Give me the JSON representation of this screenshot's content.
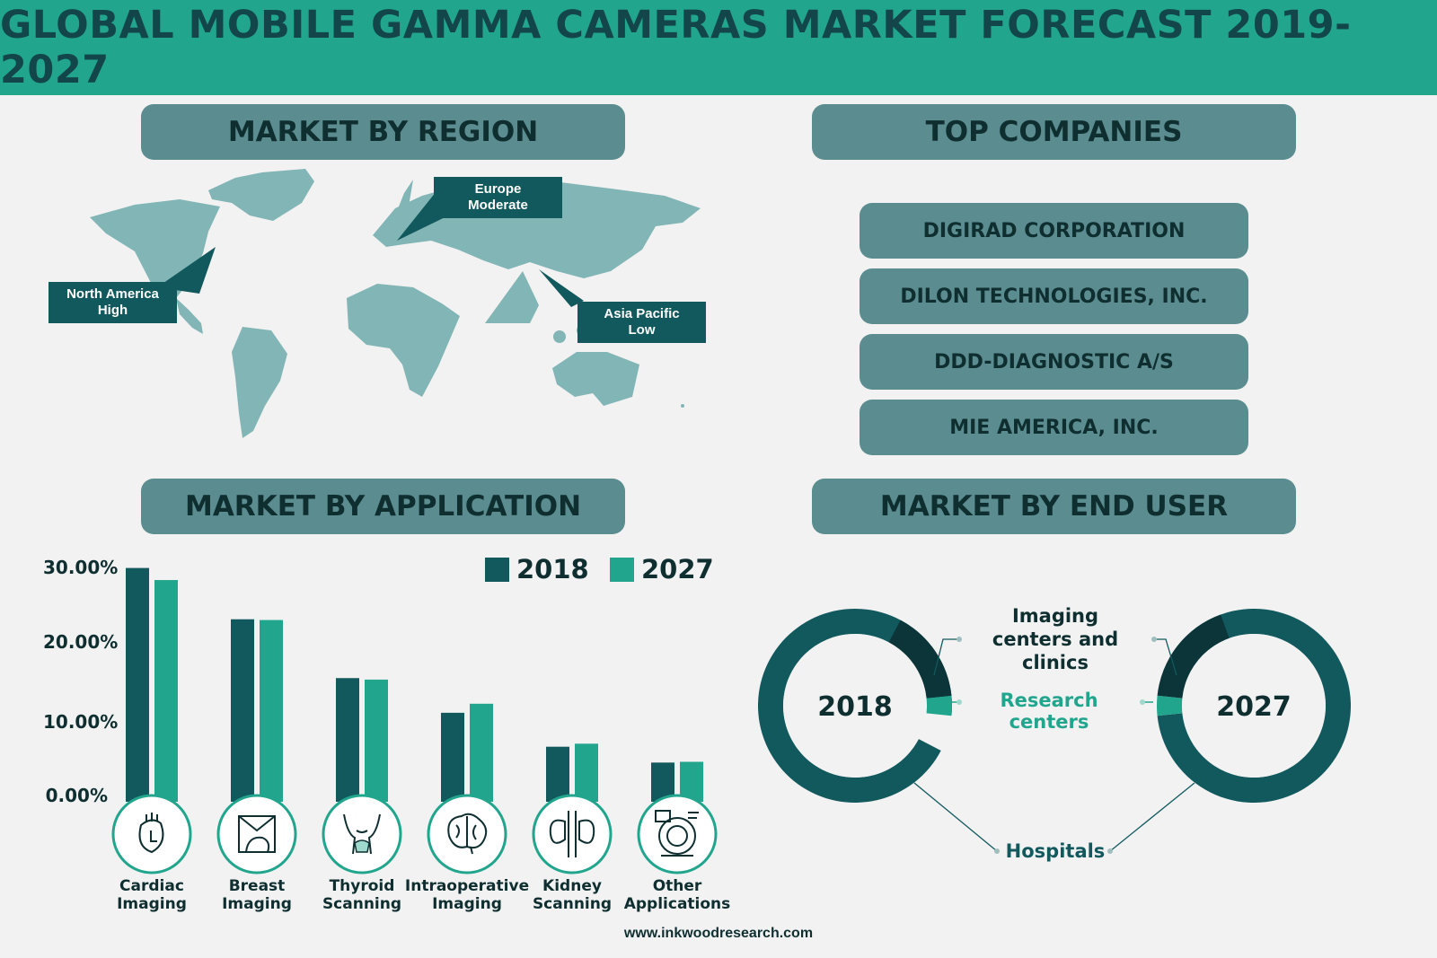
{
  "title": "GLOBAL MOBILE GAMMA CAMERAS MARKET FORECAST 2019-2027",
  "sections": {
    "region": "MARKET BY REGION",
    "companies": "TOP COMPANIES",
    "application": "MARKET BY APPLICATION",
    "end_user": "MARKET BY END USER"
  },
  "regions": [
    {
      "name": "North America",
      "level": "High"
    },
    {
      "name": "Europe",
      "level": "Moderate"
    },
    {
      "name": "Asia Pacific",
      "level": "Low"
    }
  ],
  "companies": [
    "DIGIRAD CORPORATION",
    "DILON TECHNOLOGIES, INC.",
    "DDD-DIAGNOSTIC A/S",
    "MIE AMERICA, INC."
  ],
  "colors": {
    "banner": "#21a68d",
    "pill": "#5b8c8f",
    "dark": "#12595e",
    "teal": "#21a68d",
    "darkest": "#0b3538"
  },
  "icons": [
    "heart-icon",
    "breast-icon",
    "thyroid-icon",
    "brain-icon",
    "kidney-icon",
    "scanner-icon"
  ],
  "chart_data": [
    {
      "type": "bar",
      "categories": [
        "Cardiac Imaging",
        "Breast Imaging",
        "Thyroid Scanning",
        "Intraoperative Imaging",
        "Kidney Scanning",
        "Other Applications"
      ],
      "category_lines": [
        [
          "Cardiac",
          "Imaging"
        ],
        [
          "Breast",
          "Imaging"
        ],
        [
          "Thyroid",
          "Scanning"
        ],
        [
          "Intraoperative",
          "Imaging"
        ],
        [
          "Kidney",
          "Scanning"
        ],
        [
          "Other",
          "Applications"
        ]
      ],
      "series": [
        {
          "name": "2018",
          "color": "#12595e",
          "values": [
            31.0,
            24.2,
            16.4,
            11.8,
            7.3,
            5.2
          ]
        },
        {
          "name": "2027",
          "color": "#21a68d",
          "values": [
            29.4,
            24.1,
            16.2,
            13.0,
            7.7,
            5.3
          ]
        }
      ],
      "yticks": [
        "0.00%",
        "10.00%",
        "20.00%",
        "30.00%"
      ],
      "ylim": [
        0,
        30
      ],
      "legend": "top-right"
    },
    {
      "type": "pie",
      "style": "donut",
      "labels": [
        "Hospitals",
        "Imaging centers and clinics",
        "Research centers"
      ],
      "label_lines": [
        [
          "Hospitals"
        ],
        [
          "Imaging",
          "centers and clinics"
        ],
        [
          "Research centers"
        ]
      ],
      "colors": [
        "#12595e",
        "#0b3538",
        "#21a68d"
      ],
      "charts": [
        {
          "name": "2018",
          "values": [
            82,
            12,
            6
          ]
        },
        {
          "name": "2027",
          "values": [
            78,
            16,
            6
          ]
        }
      ]
    }
  ],
  "footer": "www.inkwoodresearch.com"
}
